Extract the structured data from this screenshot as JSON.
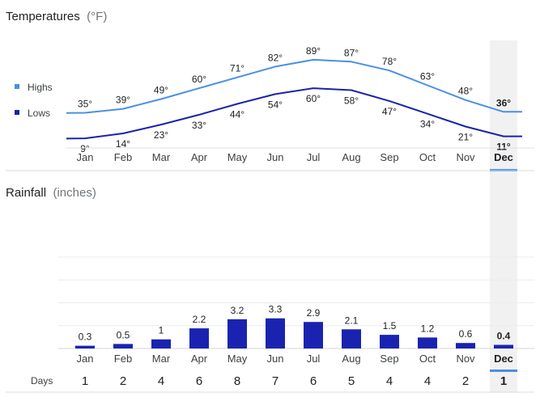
{
  "temperature_section": {
    "title": "Temperatures",
    "unit": "(°F)"
  },
  "rainfall_section": {
    "title": "Rainfall",
    "unit": "(inches)"
  },
  "legend": {
    "highs": "Highs",
    "lows": "Lows"
  },
  "days_label": "Days",
  "selected_month": "Dec",
  "colors": {
    "highs": "#4a8fe7",
    "lows": "#1a23a8",
    "bars": "#1a23b0",
    "selected_band": "#f1f1f1",
    "selected_underline": "#4a8fe7",
    "gridline": "#ececec"
  },
  "chart_data": [
    {
      "type": "line",
      "title": "Temperatures (°F)",
      "categories": [
        "Jan",
        "Feb",
        "Mar",
        "Apr",
        "May",
        "Jun",
        "Jul",
        "Aug",
        "Sep",
        "Oct",
        "Nov",
        "Dec"
      ],
      "series": [
        {
          "name": "Highs",
          "values": [
            35,
            39,
            49,
            60,
            71,
            82,
            89,
            87,
            78,
            63,
            48,
            36
          ],
          "labels": [
            "35°",
            "39°",
            "49°",
            "60°",
            "71°",
            "82°",
            "89°",
            "87°",
            "78°",
            "63°",
            "48°",
            "36°"
          ]
        },
        {
          "name": "Lows",
          "values": [
            9,
            14,
            23,
            33,
            44,
            54,
            60,
            58,
            47,
            34,
            21,
            11
          ],
          "labels": [
            "9°",
            "14°",
            "23°",
            "33°",
            "44°",
            "54°",
            "60°",
            "58°",
            "47°",
            "34°",
            "21°",
            "11°"
          ]
        }
      ],
      "legend": "left"
    },
    {
      "type": "bar",
      "title": "Rainfall (inches)",
      "categories": [
        "Jan",
        "Feb",
        "Mar",
        "Apr",
        "May",
        "Jun",
        "Jul",
        "Aug",
        "Sep",
        "Oct",
        "Nov",
        "Dec"
      ],
      "values": [
        0.3,
        0.5,
        1,
        2.2,
        3.2,
        3.3,
        2.9,
        2.1,
        1.5,
        1.2,
        0.6,
        0.4
      ],
      "labels": [
        "0.3",
        "0.5",
        "1",
        "2.2",
        "3.2",
        "3.3",
        "2.9",
        "2.1",
        "1.5",
        "1.2",
        "0.6",
        "0.4"
      ],
      "ylim": [
        0,
        10
      ],
      "grid": true,
      "days_of_rain": [
        1,
        2,
        4,
        6,
        8,
        7,
        6,
        5,
        4,
        4,
        2,
        1
      ]
    }
  ]
}
